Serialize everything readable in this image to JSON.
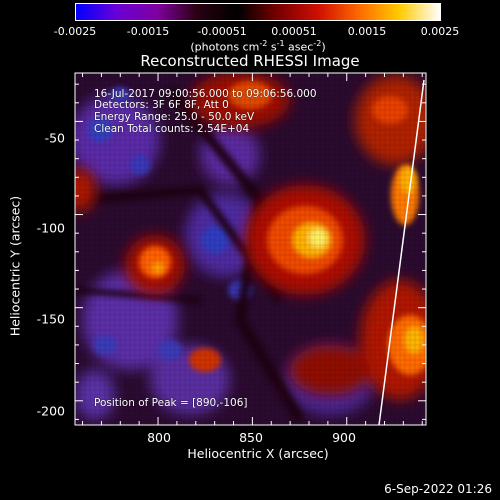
{
  "colorbar": {
    "tick_labels": [
      "-0.0025",
      "-0.0015",
      "-0.00051",
      "0.00051",
      "0.0015",
      "0.0025"
    ],
    "unit_prefix": "(photons cm",
    "unit_exp1": "-2",
    "unit_mid1": " s",
    "unit_exp2": "-1",
    "unit_mid2": " asec",
    "unit_exp3": "-2",
    "unit_suffix": ")",
    "colors": [
      "#0000ff",
      "#6a00d8",
      "#8000a0",
      "#2a0010",
      "#000000",
      "#7a0000",
      "#d01000",
      "#ff6a00",
      "#ffcc00",
      "#ffffff"
    ]
  },
  "title": "Reconstructed RHESSI Image",
  "info": {
    "time_range": "16-Jul-2017 09:00:56.000 to 09:06:56.000",
    "detectors": "Detectors: 3F 6F 8F, Att 0",
    "energy": "Energy Range: 25.0 - 50.0 keV",
    "method": "Clean    Total counts: 2.54E+04",
    "peak": "Position of Peak = [890,-106]"
  },
  "axes": {
    "xlabel": "Heliocentric X (arcsec)",
    "ylabel": "Heliocentric Y (arcsec)",
    "x_ticks": [
      "800",
      "850",
      "900"
    ],
    "y_ticks": [
      "-50",
      "-100",
      "-150",
      "-200"
    ],
    "x_range": [
      756,
      942
    ],
    "y_range": [
      -213,
      -24
    ]
  },
  "footer": {
    "datestamp": "6-Sep-2022 01:26"
  }
}
